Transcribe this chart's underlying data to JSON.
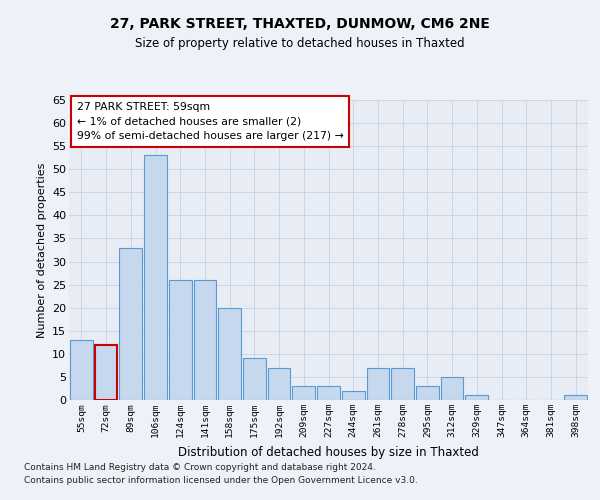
{
  "title1": "27, PARK STREET, THAXTED, DUNMOW, CM6 2NE",
  "title2": "Size of property relative to detached houses in Thaxted",
  "xlabel": "Distribution of detached houses by size in Thaxted",
  "ylabel": "Number of detached properties",
  "categories": [
    "55sqm",
    "72sqm",
    "89sqm",
    "106sqm",
    "124sqm",
    "141sqm",
    "158sqm",
    "175sqm",
    "192sqm",
    "209sqm",
    "227sqm",
    "244sqm",
    "261sqm",
    "278sqm",
    "295sqm",
    "312sqm",
    "329sqm",
    "347sqm",
    "364sqm",
    "381sqm",
    "398sqm"
  ],
  "values": [
    13,
    12,
    33,
    53,
    26,
    26,
    20,
    9,
    7,
    3,
    3,
    2,
    7,
    7,
    3,
    5,
    1,
    0,
    0,
    0,
    1
  ],
  "bar_color": "#c5d8ed",
  "bar_edge_color": "#5b9bd5",
  "highlight_bar_index": 1,
  "highlight_bar_edge_color": "#cc0000",
  "annotation_box_text": "27 PARK STREET: 59sqm\n← 1% of detached houses are smaller (2)\n99% of semi-detached houses are larger (217) →",
  "annotation_box_edge_color": "#cc0000",
  "ylim": [
    0,
    65
  ],
  "yticks": [
    0,
    5,
    10,
    15,
    20,
    25,
    30,
    35,
    40,
    45,
    50,
    55,
    60,
    65
  ],
  "grid_color": "#cdd5e3",
  "bg_color": "#e8ecf4",
  "fig_bg_color": "#eef1f7",
  "footer1": "Contains HM Land Registry data © Crown copyright and database right 2024.",
  "footer2": "Contains public sector information licensed under the Open Government Licence v3.0."
}
